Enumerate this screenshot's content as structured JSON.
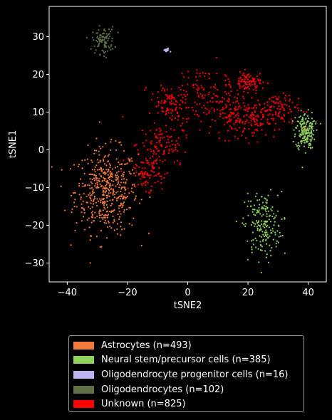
{
  "chart_data": {
    "type": "scatter",
    "xlabel": "tSNE2",
    "ylabel": "tSNE1",
    "xlim": [
      -46,
      46
    ],
    "ylim": [
      -35,
      38
    ],
    "xticks": [
      -40,
      -20,
      0,
      20,
      40
    ],
    "yticks": [
      -30,
      -20,
      -10,
      0,
      10,
      20,
      30
    ],
    "xtick_labels": [
      "−40",
      "−20",
      "0",
      "20",
      "40"
    ],
    "ytick_labels": [
      "−30",
      "−20",
      "−10",
      "0",
      "10",
      "20",
      "30"
    ],
    "grid": false,
    "legend_position": "below",
    "background": "#000000",
    "series": [
      {
        "name": "Astrocytes (n=493)",
        "color": "#f07a3c",
        "count": 493,
        "clusters": [
          {
            "cx": -27,
            "cy": -11,
            "sx": 6.5,
            "sy": 7.0
          }
        ]
      },
      {
        "name": "Neural stem/precursor cells (n=385)",
        "color": "#8fd15a",
        "count": 385,
        "clusters": [
          {
            "cx": 25,
            "cy": -20,
            "sx": 3.8,
            "sy": 5.5
          },
          {
            "cx": 39,
            "cy": 5,
            "sx": 2.0,
            "sy": 3.0
          }
        ]
      },
      {
        "name": "Oligodendrocyte progenitor cells (n=16)",
        "color": "#bdb4f0",
        "count": 16,
        "clusters": [
          {
            "cx": -7,
            "cy": 26.3,
            "sx": 0.7,
            "sy": 0.4
          }
        ]
      },
      {
        "name": "Oligodendrocytes (n=102)",
        "color": "#5f7047",
        "count": 102,
        "clusters": [
          {
            "cx": -28,
            "cy": 29,
            "sx": 2.3,
            "sy": 2.2
          }
        ]
      },
      {
        "name": "Unknown (n=825)",
        "color": "#ff0000",
        "count": 825,
        "clusters": [
          {
            "cx": -8,
            "cy": 2,
            "sx": 5,
            "sy": 4
          },
          {
            "cx": -13,
            "cy": -6,
            "sx": 3,
            "sy": 3
          },
          {
            "cx": -6,
            "cy": 12,
            "sx": 4,
            "sy": 3
          },
          {
            "cx": 5,
            "cy": 14,
            "sx": 5,
            "sy": 5
          },
          {
            "cx": 14,
            "cy": 10,
            "sx": 4,
            "sy": 4
          },
          {
            "cx": 22,
            "cy": 8,
            "sx": 4,
            "sy": 3
          },
          {
            "cx": 30,
            "cy": 11,
            "sx": 4,
            "sy": 3
          },
          {
            "cx": 20,
            "cy": 18,
            "sx": 3,
            "sy": 1.5
          }
        ]
      }
    ]
  }
}
